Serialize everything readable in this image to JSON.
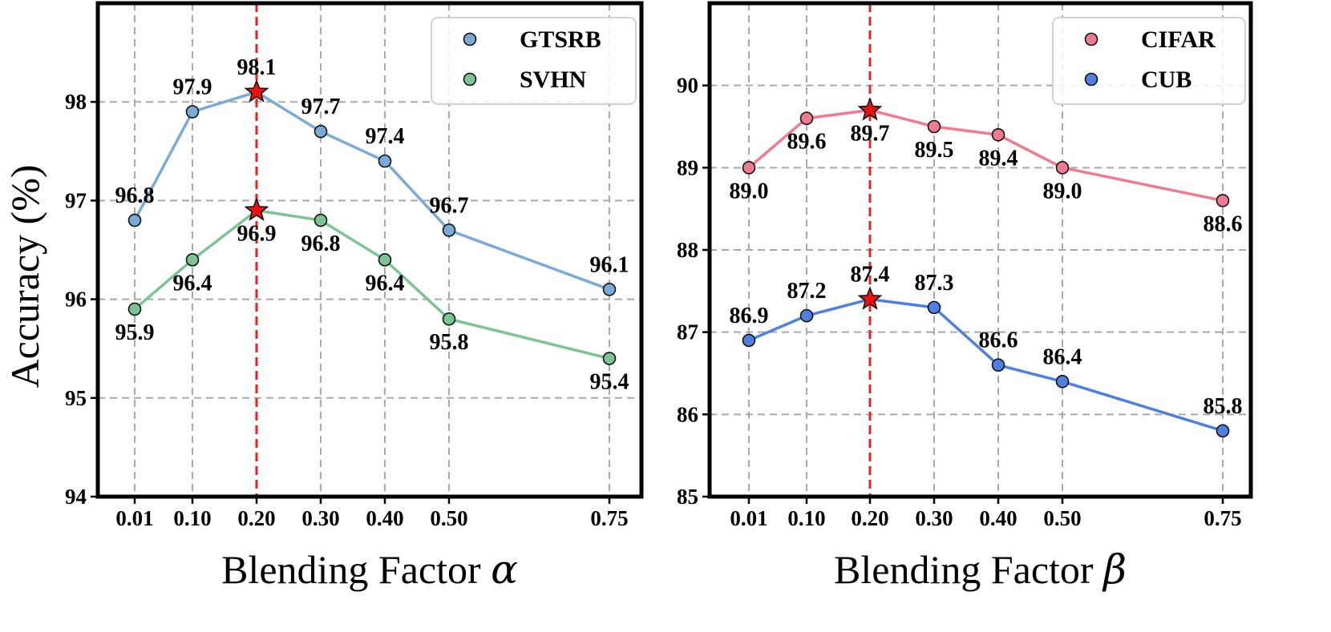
{
  "ylabel": "Accuracy (%)",
  "chart_data": [
    {
      "type": "line",
      "xlabel": "Blending Factor",
      "xlabel_symbol": "α",
      "ylabel": "Accuracy (%)",
      "x": [
        0.01,
        0.1,
        0.2,
        0.3,
        0.4,
        0.5,
        0.75
      ],
      "x_tick_labels": [
        "0.01",
        "0.10",
        "0.20",
        "0.30",
        "0.40",
        "0.50",
        "0.75"
      ],
      "ylim": [
        94,
        99
      ],
      "y_ticks": [
        94,
        95,
        96,
        97,
        98
      ],
      "grid": true,
      "legend": "top-right",
      "highlight_x": 0.2,
      "series": [
        {
          "name": "GTSRB",
          "color": "#7aaad6",
          "values": [
            96.8,
            97.9,
            98.1,
            97.7,
            97.4,
            96.7,
            96.1
          ],
          "labels": [
            "96.8",
            "97.9",
            "98.1",
            "97.7",
            "97.4",
            "96.7",
            "96.1"
          ],
          "label_pos": [
            "above",
            "above",
            "above",
            "above",
            "above",
            "above",
            "above"
          ]
        },
        {
          "name": "SVHN",
          "color": "#7dc495",
          "values": [
            95.9,
            96.4,
            96.9,
            96.8,
            96.4,
            95.8,
            95.4
          ],
          "labels": [
            "95.9",
            "96.4",
            "96.9",
            "96.8",
            "96.4",
            "95.8",
            "95.4"
          ],
          "label_pos": [
            "below",
            "below",
            "below",
            "below",
            "below",
            "below",
            "below"
          ]
        }
      ]
    },
    {
      "type": "line",
      "xlabel": "Blending Factor",
      "xlabel_symbol": "β",
      "ylabel": "",
      "x": [
        0.01,
        0.1,
        0.2,
        0.3,
        0.4,
        0.5,
        0.75
      ],
      "x_tick_labels": [
        "0.01",
        "0.10",
        "0.20",
        "0.30",
        "0.40",
        "0.50",
        "0.75"
      ],
      "ylim": [
        85,
        91
      ],
      "y_ticks": [
        85,
        86,
        87,
        88,
        89,
        90
      ],
      "grid": true,
      "legend": "top-right",
      "highlight_x": 0.2,
      "series": [
        {
          "name": "CIFAR",
          "color": "#ef7b91",
          "values": [
            89.0,
            89.6,
            89.7,
            89.5,
            89.4,
            89.0,
            88.6
          ],
          "labels": [
            "89.0",
            "89.6",
            "89.7",
            "89.5",
            "89.4",
            "89.0",
            "88.6"
          ],
          "label_pos": [
            "below",
            "below",
            "below",
            "below",
            "below",
            "below",
            "below"
          ]
        },
        {
          "name": "CUB",
          "color": "#4f7fe0",
          "values": [
            86.9,
            87.2,
            87.4,
            87.3,
            86.6,
            86.4,
            85.8
          ],
          "labels": [
            "86.9",
            "87.2",
            "87.4",
            "87.3",
            "86.6",
            "86.4",
            "85.8"
          ],
          "label_pos": [
            "above",
            "above",
            "above",
            "above",
            "above",
            "above",
            "above"
          ]
        }
      ]
    }
  ]
}
